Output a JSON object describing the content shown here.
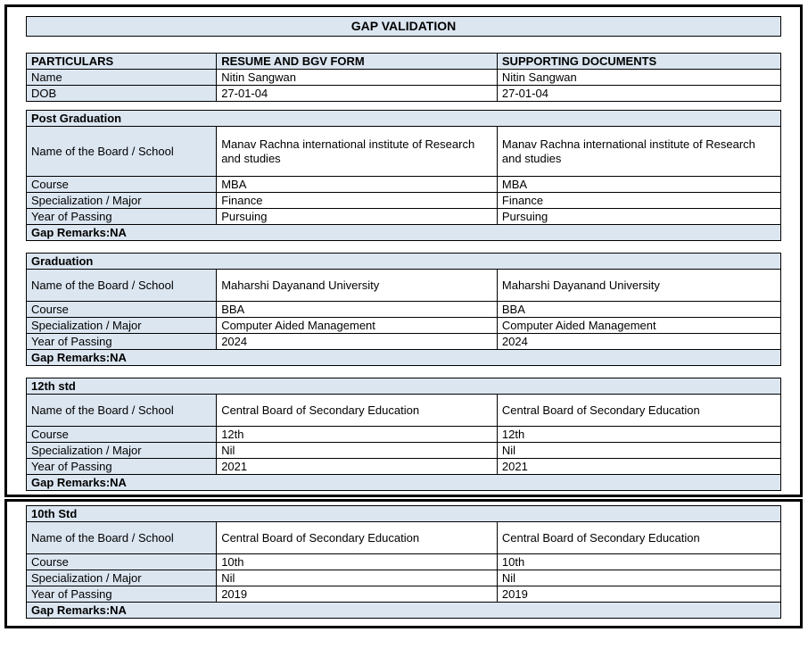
{
  "title": "GAP VALIDATION",
  "columns": [
    "PARTICULARS",
    "RESUME AND BGV FORM",
    "SUPPORTING DOCUMENTS"
  ],
  "particulars_rows": [
    {
      "label": "Name",
      "values": [
        "Nitin Sangwan",
        "Nitin Sangwan"
      ]
    },
    {
      "label": "DOB",
      "values": [
        "27-01-04",
        "27-01-04"
      ]
    }
  ],
  "sections": [
    {
      "frame": 1,
      "heading": "Post Graduation",
      "rows": [
        {
          "label": "Name of the Board / School",
          "values": [
            "Manav Rachna international institute of Research and studies",
            "Manav Rachna international institute of Research and studies"
          ]
        },
        {
          "label": "Course",
          "values": [
            "MBA",
            "MBA"
          ]
        },
        {
          "label": "Specialization / Major",
          "values": [
            "Finance",
            "Finance"
          ]
        },
        {
          "label": "Year of Passing",
          "values": [
            "Pursuing",
            "Pursuing"
          ]
        }
      ],
      "gap_remarks": "Gap Remarks:NA"
    },
    {
      "frame": 1,
      "heading": "Graduation",
      "rows": [
        {
          "label": "Name of the Board / School",
          "values": [
            "Maharshi Dayanand University",
            "Maharshi Dayanand University"
          ]
        },
        {
          "label": "Course",
          "values": [
            "BBA",
            "BBA"
          ]
        },
        {
          "label": "Specialization / Major",
          "values": [
            "Computer Aided Management",
            "Computer Aided Management"
          ]
        },
        {
          "label": "Year of Passing",
          "values": [
            "2024",
            "2024"
          ]
        }
      ],
      "gap_remarks": "Gap Remarks:NA"
    },
    {
      "frame": 1,
      "heading": "12th std",
      "rows": [
        {
          "label": "Name of the Board / School",
          "values": [
            "Central Board of Secondary Education",
            "Central Board of Secondary Education"
          ]
        },
        {
          "label": "Course",
          "values": [
            "12th",
            "12th"
          ]
        },
        {
          "label": "Specialization / Major",
          "values": [
            "Nil",
            "Nil"
          ]
        },
        {
          "label": "Year of Passing",
          "values": [
            "2021",
            "2021"
          ]
        }
      ],
      "gap_remarks": "Gap Remarks:NA"
    },
    {
      "frame": 2,
      "heading": "10th Std",
      "rows": [
        {
          "label": "Name of the Board / School",
          "values": [
            "Central Board of Secondary Education",
            "Central Board of Secondary Education"
          ]
        },
        {
          "label": "Course",
          "values": [
            "10th",
            "10th"
          ]
        },
        {
          "label": "Specialization / Major",
          "values": [
            "Nil",
            "Nil"
          ]
        },
        {
          "label": "Year of Passing",
          "values": [
            "2019",
            "2019"
          ]
        }
      ],
      "gap_remarks": "Gap Remarks:NA"
    }
  ],
  "colors": {
    "shaded_cell_bg": "#dce6f1",
    "border": "#000000",
    "text": "#000000",
    "page_bg": "#ffffff"
  }
}
